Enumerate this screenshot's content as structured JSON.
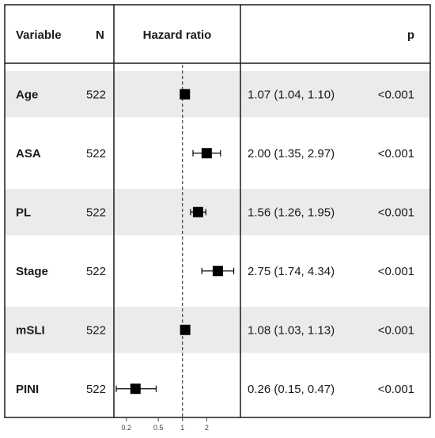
{
  "chart_data": {
    "type": "forest",
    "headers": {
      "variable": "Variable",
      "n": "N",
      "effect": "Hazard ratio",
      "p": "p"
    },
    "xscale": "log",
    "reference_line": 1,
    "xlim": [
      0.15,
      4.8
    ],
    "xticks": [
      0.2,
      0.5,
      1,
      2
    ],
    "xtick_labels": [
      "0.2",
      "0.5",
      "1",
      "2"
    ],
    "rows": [
      {
        "variable": "Age",
        "n": "522",
        "hr": 1.07,
        "lower": 1.04,
        "upper": 1.1,
        "ci_text": "1.07 (1.04, 1.10)",
        "p": "<0.001"
      },
      {
        "variable": "ASA",
        "n": "522",
        "hr": 2.0,
        "lower": 1.35,
        "upper": 2.97,
        "ci_text": "2.00 (1.35, 2.97)",
        "p": "<0.001"
      },
      {
        "variable": "PL",
        "n": "522",
        "hr": 1.56,
        "lower": 1.26,
        "upper": 1.95,
        "ci_text": "1.56 (1.26, 1.95)",
        "p": "<0.001"
      },
      {
        "variable": "Stage",
        "n": "522",
        "hr": 2.75,
        "lower": 1.74,
        "upper": 4.34,
        "ci_text": "2.75 (1.74, 4.34)",
        "p": "<0.001"
      },
      {
        "variable": "mSLI",
        "n": "522",
        "hr": 1.08,
        "lower": 1.03,
        "upper": 1.13,
        "ci_text": "1.08 (1.03, 1.13)",
        "p": "<0.001"
      },
      {
        "variable": "PINI",
        "n": "522",
        "hr": 0.26,
        "lower": 0.15,
        "upper": 0.47,
        "ci_text": "0.26 (0.15, 0.47)",
        "p": "<0.001"
      }
    ],
    "colors": {
      "shaded_row": "#ebebeb",
      "marker": "#000000",
      "frame": "#1a1a1a"
    }
  }
}
